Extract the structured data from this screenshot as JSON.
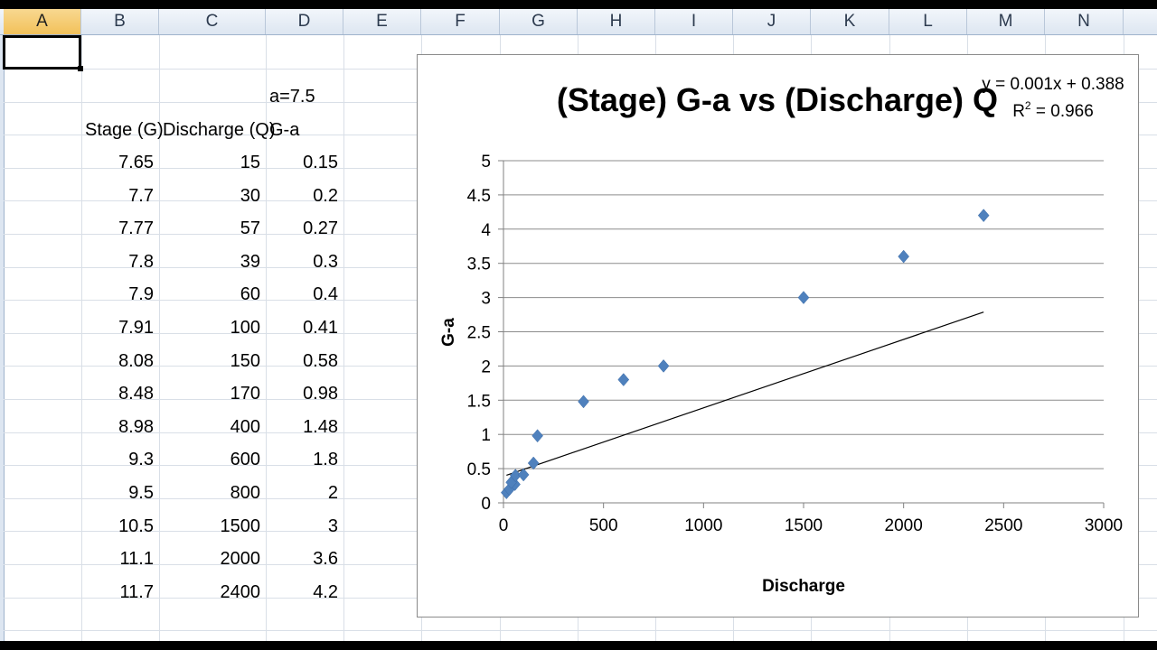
{
  "columns": [
    "A",
    "B",
    "C",
    "D",
    "E",
    "F",
    "G",
    "H",
    "I",
    "J",
    "K",
    "L",
    "M",
    "N"
  ],
  "sheet": {
    "a_label": "a=7.5",
    "headers": {
      "stage": "Stage (G)",
      "discharge": "Discharge (Q)",
      "ga": "G-a"
    },
    "rows": [
      {
        "stage": "7.65",
        "discharge": "15",
        "ga": "0.15"
      },
      {
        "stage": "7.7",
        "discharge": "30",
        "ga": "0.2"
      },
      {
        "stage": "7.77",
        "discharge": "57",
        "ga": "0.27"
      },
      {
        "stage": "7.8",
        "discharge": "39",
        "ga": "0.3"
      },
      {
        "stage": "7.9",
        "discharge": "60",
        "ga": "0.4"
      },
      {
        "stage": "7.91",
        "discharge": "100",
        "ga": "0.41"
      },
      {
        "stage": "8.08",
        "discharge": "150",
        "ga": "0.58"
      },
      {
        "stage": "8.48",
        "discharge": "170",
        "ga": "0.98"
      },
      {
        "stage": "8.98",
        "discharge": "400",
        "ga": "1.48"
      },
      {
        "stage": "9.3",
        "discharge": "600",
        "ga": "1.8"
      },
      {
        "stage": "9.5",
        "discharge": "800",
        "ga": "2"
      },
      {
        "stage": "10.5",
        "discharge": "1500",
        "ga": "3"
      },
      {
        "stage": "11.1",
        "discharge": "2000",
        "ga": "3.6"
      },
      {
        "stage": "11.7",
        "discharge": "2400",
        "ga": "4.2"
      }
    ]
  },
  "chart_data": {
    "type": "scatter",
    "title": "(Stage) G-a vs (Discharge) Q",
    "xlabel": "Discharge",
    "ylabel": "G-a",
    "xlim": [
      0,
      3000
    ],
    "ylim": [
      0,
      5
    ],
    "xticks": [
      "0",
      "500",
      "1000",
      "1500",
      "2000",
      "2500",
      "3000"
    ],
    "yticks": [
      "0",
      "0.5",
      "1",
      "1.5",
      "2",
      "2.5",
      "3",
      "3.5",
      "4",
      "4.5",
      "5"
    ],
    "grid": true,
    "points": [
      {
        "x": 15,
        "y": 0.15
      },
      {
        "x": 30,
        "y": 0.2
      },
      {
        "x": 57,
        "y": 0.27
      },
      {
        "x": 39,
        "y": 0.3
      },
      {
        "x": 60,
        "y": 0.4
      },
      {
        "x": 100,
        "y": 0.41
      },
      {
        "x": 150,
        "y": 0.58
      },
      {
        "x": 170,
        "y": 0.98
      },
      {
        "x": 400,
        "y": 1.48
      },
      {
        "x": 600,
        "y": 1.8
      },
      {
        "x": 800,
        "y": 2
      },
      {
        "x": 1500,
        "y": 3
      },
      {
        "x": 2000,
        "y": 3.6
      },
      {
        "x": 2400,
        "y": 4.2
      }
    ],
    "trendline": {
      "slope": 0.001,
      "intercept": 0.388,
      "x_range": [
        15,
        2400
      ]
    },
    "equation": "y = 0.001x + 0.388",
    "r2_label": "R",
    "r2_sup": "2",
    "r2_value": " = 0.966",
    "marker_color": "#4f81bd"
  }
}
